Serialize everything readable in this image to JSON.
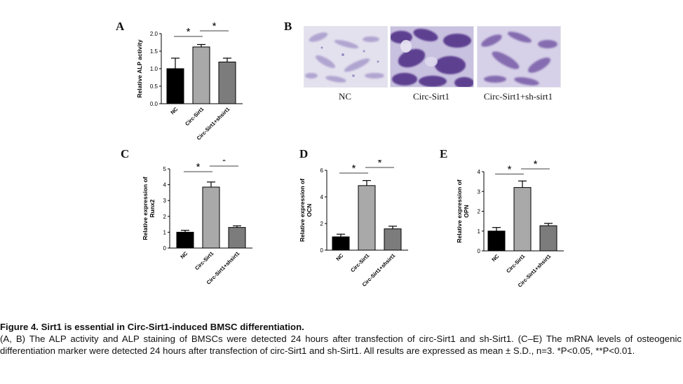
{
  "panel_letters": {
    "A": "A",
    "B": "B",
    "C": "C",
    "D": "D",
    "E": "E"
  },
  "colors": {
    "nc": "#000000",
    "circ": "#a9a9a9",
    "circ_sh": "#7c7c7c",
    "stain_bg": "#d9d6ea",
    "stain_dark": "#4b2a83"
  },
  "chart_data": [
    {
      "panel": "A",
      "type": "bar",
      "categories": [
        "NC",
        "Circ-Sirt1",
        "Circ-Sirt1+shsirt1"
      ],
      "values": [
        1.0,
        1.62,
        1.19
      ],
      "errors": [
        0.3,
        0.07,
        0.11
      ],
      "ylabel": "Relative ALP activity",
      "ylim": [
        0,
        2.0
      ],
      "yticks": [
        "0.0",
        "0.5",
        "1.0",
        "1.5",
        "2.0"
      ],
      "significance": [
        "*",
        "*"
      ]
    },
    {
      "panel": "C",
      "type": "bar",
      "categories": [
        "NC",
        "Circ-Sirt1",
        "Circ-Sirt1+shsirt1"
      ],
      "values": [
        1.0,
        3.85,
        1.3
      ],
      "errors": [
        0.12,
        0.32,
        0.1
      ],
      "ylabel_lines": [
        "Relative expression of",
        "Runx2"
      ],
      "ylim": [
        0,
        5
      ],
      "yticks": [
        "0",
        "1",
        "2",
        "3",
        "4",
        "5"
      ],
      "significance": [
        "*",
        "*"
      ]
    },
    {
      "panel": "D",
      "type": "bar",
      "categories": [
        "NC",
        "Circ-Sirt1",
        "Circ-Sirt1+shsirt1"
      ],
      "values": [
        1.0,
        4.85,
        1.6
      ],
      "errors": [
        0.2,
        0.38,
        0.2
      ],
      "ylabel_lines": [
        "Relative expression of",
        "OCN"
      ],
      "ylim": [
        0,
        6
      ],
      "yticks": [
        "0",
        "2",
        "4",
        "6"
      ],
      "significance": [
        "*",
        "*"
      ]
    },
    {
      "panel": "E",
      "type": "bar",
      "categories": [
        "NC",
        "Circ-Sirt1",
        "Circ-Sirt1+shsirt1"
      ],
      "values": [
        1.0,
        3.2,
        1.27
      ],
      "errors": [
        0.18,
        0.33,
        0.12
      ],
      "ylabel_lines": [
        "Relative expression of",
        "OPN"
      ],
      "ylim": [
        0,
        4
      ],
      "yticks": [
        "0",
        "1",
        "2",
        "3",
        "4"
      ],
      "significance": [
        "*",
        "*"
      ]
    }
  ],
  "staining": {
    "labels": [
      "NC",
      "Circ-Sirt1",
      "Circ-Sirt1+sh-sirt1"
    ]
  },
  "caption": {
    "title": "Figure 4. Sirt1 is essential in Circ-Sirt1-induced BMSC differentiation.",
    "text": "(A, B) The ALP activity and ALP staining of BMSCs were detected 24 hours after transfection of circ-Sirt1 and sh-Sirt1. (C–E) The mRNA levels of osteogenic differentiation marker were detected 24 hours after transfection of circ-Sirt1 and sh-Sirt1. All results are expressed as mean ± S.D., n=3. *P<0.05, **P<0.01."
  }
}
